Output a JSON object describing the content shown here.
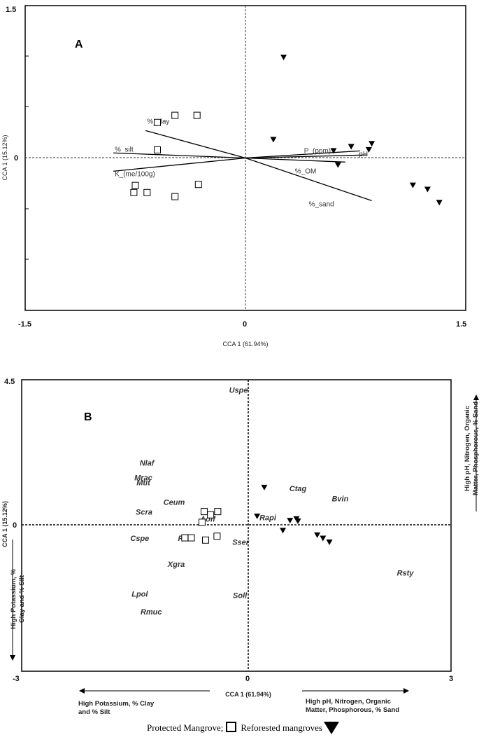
{
  "chart_data": [
    {
      "type": "scatter",
      "panel_label": "A",
      "xlabel": "CCA 1 (61.94%)",
      "ylabel": "CCA 1 (15.12%)",
      "xlim": [
        -1.5,
        1.5
      ],
      "ylim": [
        -1.5,
        1.5
      ],
      "x_ticks": [
        "-1.5",
        "0",
        "1.5"
      ],
      "y_ticks": [
        "1.5",
        "0"
      ],
      "series": [
        {
          "marker": "square-open",
          "points": [
            [
              -0.48,
              0.42
            ],
            [
              -0.33,
              0.42
            ],
            [
              -0.6,
              0.35
            ],
            [
              -0.6,
              0.08
            ],
            [
              -0.75,
              -0.27
            ],
            [
              -0.76,
              -0.34
            ],
            [
              -0.67,
              -0.34
            ],
            [
              -0.48,
              -0.38
            ],
            [
              -0.32,
              -0.26
            ]
          ]
        },
        {
          "marker": "triangle-down-filled",
          "points": [
            [
              0.26,
              0.99
            ],
            [
              0.19,
              0.18
            ],
            [
              0.72,
              0.11
            ],
            [
              0.86,
              0.14
            ],
            [
              0.84,
              0.08
            ],
            [
              0.6,
              0.07
            ],
            [
              0.63,
              -0.07
            ],
            [
              1.14,
              -0.27
            ],
            [
              1.24,
              -0.31
            ],
            [
              1.32,
              -0.44
            ]
          ]
        }
      ],
      "vectors": [
        {
          "label": "%_clay",
          "x": -0.68,
          "y": 0.27
        },
        {
          "label": "%_silt",
          "x": -0.9,
          "y": 0.05
        },
        {
          "label": "K_(me/100g)",
          "x": -0.9,
          "y": -0.13
        },
        {
          "label": "P_(ppm)",
          "x": 0.78,
          "y": 0.07
        },
        {
          "label": "pH",
          "x": 0.83,
          "y": 0.03
        },
        {
          "label": "%_OM",
          "x": 0.68,
          "y": -0.04
        },
        {
          "label": "%_sand",
          "x": 0.86,
          "y": -0.42
        }
      ]
    },
    {
      "type": "scatter",
      "panel_label": "B",
      "xlabel": "CCA 1 (61.94%)",
      "ylabel": "CCA 1 (15.12%)",
      "xlim": [
        -3,
        3
      ],
      "ylim": [
        -4.5,
        4.5
      ],
      "x_ticks": [
        "-3",
        "0",
        "3"
      ],
      "y_ticks": [
        "4.5",
        "0"
      ],
      "series": [
        {
          "marker": "square-open",
          "points": [
            [
              -0.45,
              0.43
            ],
            [
              -0.26,
              0.43
            ],
            [
              -0.36,
              0.33
            ],
            [
              -0.48,
              0.1
            ],
            [
              -0.72,
              -0.38
            ],
            [
              -0.63,
              -0.38
            ],
            [
              -0.43,
              -0.45
            ],
            [
              -0.27,
              -0.33
            ]
          ]
        },
        {
          "marker": "triangle-down-filled",
          "points": [
            [
              0.39,
              1.17
            ],
            [
              0.29,
              0.28
            ],
            [
              0.75,
              0.15
            ],
            [
              0.84,
              0.2
            ],
            [
              0.65,
              -0.16
            ],
            [
              1.13,
              -0.3
            ],
            [
              1.21,
              -0.4
            ],
            [
              1.3,
              -0.52
            ],
            [
              0.86,
              0.13
            ]
          ]
        }
      ],
      "species_labels": [
        {
          "label": "Uspe",
          "x": 0.03,
          "y": 4.1
        },
        {
          "label": "Nlaf",
          "x": -1.25,
          "y": 1.85
        },
        {
          "label": "Mrac",
          "x": -1.3,
          "y": 1.4
        },
        {
          "label": "Mtit",
          "x": -1.3,
          "y": 1.24
        },
        {
          "label": "Ctag",
          "x": 0.86,
          "y": 1.06
        },
        {
          "label": "Bvin",
          "x": 1.45,
          "y": 0.75
        },
        {
          "label": "Ceum",
          "x": -0.87,
          "y": 0.64
        },
        {
          "label": "Scra",
          "x": -1.29,
          "y": 0.34
        },
        {
          "label": "Aoff",
          "x": -0.4,
          "y": 0.12
        },
        {
          "label": "Rapi",
          "x": 0.44,
          "y": 0.16
        },
        {
          "label": "Cspe",
          "x": -1.35,
          "y": -0.48
        },
        {
          "label": "Pind",
          "x": -0.7,
          "y": -0.48
        },
        {
          "label": "Sser",
          "x": 0.06,
          "y": -0.6
        },
        {
          "label": "Xgra",
          "x": -0.84,
          "y": -1.28
        },
        {
          "label": "Lpol",
          "x": -1.35,
          "y": -2.2
        },
        {
          "label": "Soll",
          "x": 0.05,
          "y": -2.24
        },
        {
          "label": "Rmuc",
          "x": -1.19,
          "y": -2.75
        },
        {
          "label": "Rsty",
          "x": 2.36,
          "y": -1.55
        }
      ],
      "annotations": {
        "right_vertical": [
          "High pH, Nitrogen, Organic",
          "Matter, Phosphorous, % Sand"
        ],
        "left_vertical": [
          "High Potassium, %",
          "Clay and % Silt"
        ],
        "bottom_left": [
          "High Potassium, % Clay",
          "and % Silt"
        ],
        "bottom_right": [
          "High pH, Nitrogen, Organic",
          "Matter, Phosphorous, % Sand"
        ]
      }
    }
  ],
  "legend": {
    "protected": "Protected Mangrove;",
    "reforested": "Reforested mangroves"
  }
}
